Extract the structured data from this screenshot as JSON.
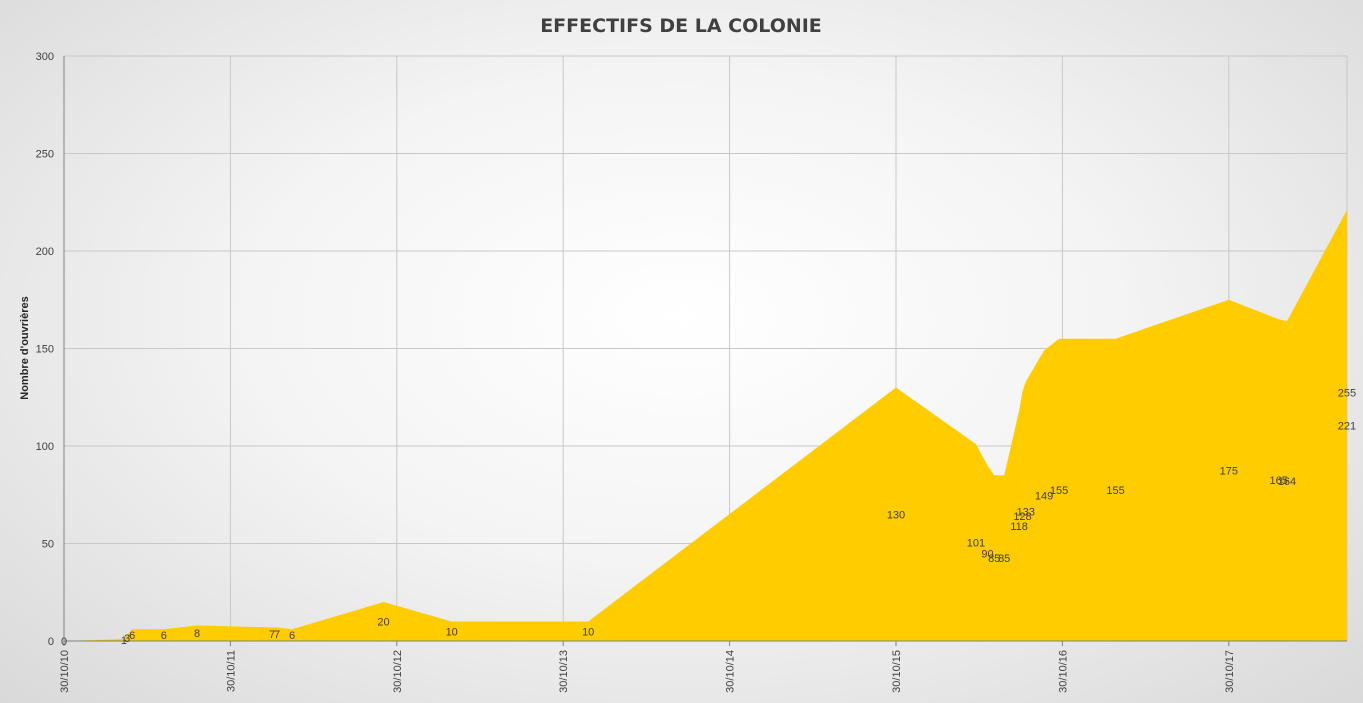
{
  "chart_data": {
    "type": "area",
    "title": "EFFECTIFS DE LA COLONIE",
    "ylabel": "Nombre d'ouvrières",
    "xlabel": "",
    "ylim": [
      0,
      300
    ],
    "yticks": [
      0,
      50,
      100,
      150,
      200,
      250,
      300
    ],
    "xticks": [
      "30/10/10",
      "30/10/11",
      "30/10/12",
      "30/10/13",
      "30/10/14",
      "30/10/15",
      "30/10/16",
      "30/10/17"
    ],
    "grid": true,
    "legend": "none",
    "fill_color": "#ffcc00",
    "series": [
      {
        "points": [
          {
            "x": 10.0,
            "y": 0
          },
          {
            "x": 10.36,
            "y": 1
          },
          {
            "x": 10.38,
            "y": 3
          },
          {
            "x": 10.41,
            "y": 6
          },
          {
            "x": 10.6,
            "y": 6
          },
          {
            "x": 10.8,
            "y": 8
          },
          {
            "x": 11.25,
            "y": 7
          },
          {
            "x": 11.28,
            "y": 7
          },
          {
            "x": 11.37,
            "y": 6
          },
          {
            "x": 11.92,
            "y": 20
          },
          {
            "x": 12.33,
            "y": 10
          },
          {
            "x": 13.15,
            "y": 10
          },
          {
            "x": 15.0,
            "y": 130
          },
          {
            "x": 15.48,
            "y": 101
          },
          {
            "x": 15.55,
            "y": 90
          },
          {
            "x": 15.59,
            "y": 85
          },
          {
            "x": 15.65,
            "y": 85
          },
          {
            "x": 15.74,
            "y": 118
          },
          {
            "x": 15.76,
            "y": 128
          },
          {
            "x": 15.78,
            "y": 133
          },
          {
            "x": 15.89,
            "y": 149
          },
          {
            "x": 15.98,
            "y": 155
          },
          {
            "x": 16.32,
            "y": 155
          },
          {
            "x": 17.0,
            "y": 175
          },
          {
            "x": 17.3,
            "y": 165
          },
          {
            "x": 17.35,
            "y": 164
          },
          {
            "x": 17.71,
            "y": 221
          },
          {
            "x": 17.71,
            "y": 255
          }
        ]
      }
    ]
  }
}
